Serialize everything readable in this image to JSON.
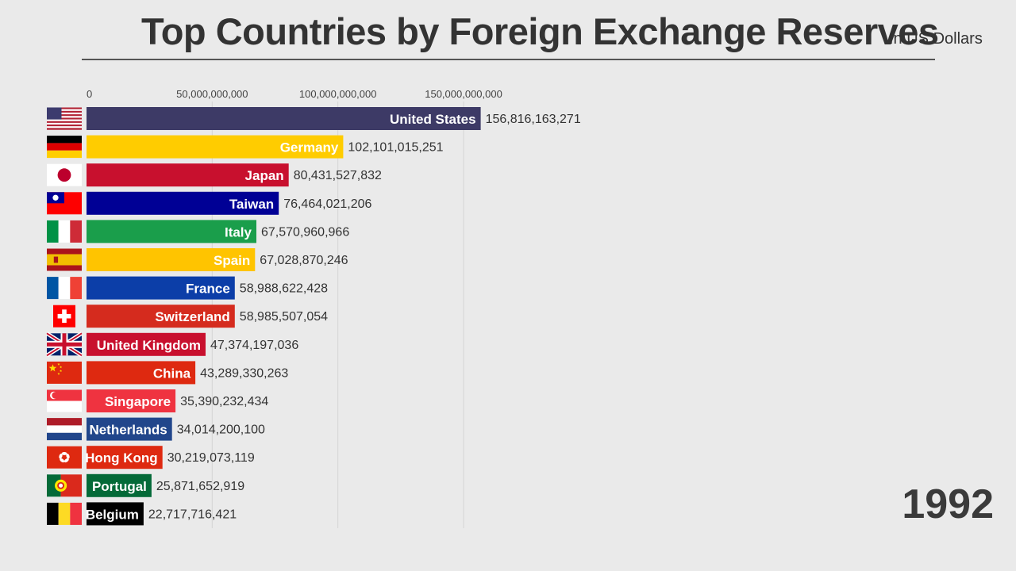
{
  "header": {
    "title": "Top Countries by Foreign Exchange Reserves",
    "subtitle": "In US Dollars"
  },
  "chart_data": {
    "type": "bar",
    "orientation": "horizontal",
    "title": "Top Countries by Foreign Exchange Reserves",
    "subtitle": "In US Dollars",
    "year": "1992",
    "xlim": [
      0,
      180000000000
    ],
    "ticks": [
      0,
      50000000000,
      100000000000,
      150000000000
    ],
    "tick_labels": [
      "0",
      "50,000,000,000",
      "100,000,000,000",
      "150,000,000,000"
    ],
    "grid": true,
    "categories": [
      "United States",
      "Germany",
      "Japan",
      "Taiwan",
      "Italy",
      "Spain",
      "France",
      "Switzerland",
      "United Kingdom",
      "China",
      "Singapore",
      "Netherlands",
      "Hong Kong",
      "Portugal",
      "Belgium"
    ],
    "values": [
      156816163271,
      102101015251,
      80431527832,
      76464021206,
      67570960966,
      67028870246,
      58988622428,
      58985507054,
      47374197036,
      43289330263,
      35390232434,
      34014200100,
      30219073119,
      25871652919,
      22717716421
    ],
    "value_labels": [
      "156,816,163,271",
      "102,101,015,251",
      "80,431,527,832",
      "76,464,021,206",
      "67,570,960,966",
      "67,028,870,246",
      "58,988,622,428",
      "58,985,507,054",
      "47,374,197,036",
      "43,289,330,263",
      "35,390,232,434",
      "34,014,200,100",
      "30,219,073,119",
      "25,871,652,919",
      "22,717,716,421"
    ],
    "colors": [
      "#3d3a66",
      "#ffcc00",
      "#c8102e",
      "#000095",
      "#1a9e4b",
      "#ffc400",
      "#0c3ea8",
      "#d52b1e",
      "#c8102e",
      "#de2910",
      "#ef3340",
      "#21468b",
      "#de2910",
      "#046a38",
      "#000000"
    ],
    "flags": [
      "flag-us",
      "flag-de",
      "flag-jp",
      "flag-tw",
      "flag-it",
      "flag-es",
      "flag-fr",
      "flag-ch",
      "flag-gb",
      "flag-cn",
      "flag-sg",
      "flag-nl",
      "flag-hk",
      "flag-pt",
      "flag-be"
    ]
  }
}
